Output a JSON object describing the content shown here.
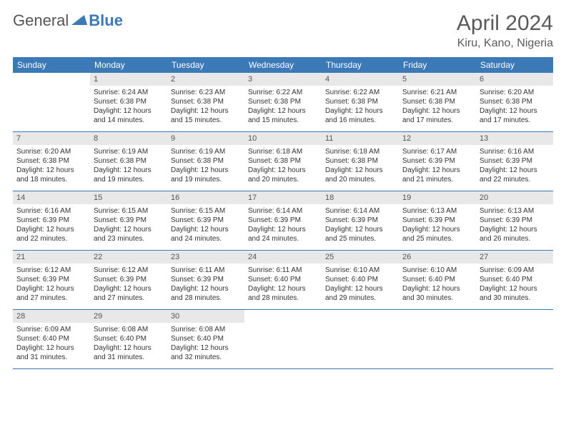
{
  "brand": {
    "general": "General",
    "blue": "Blue"
  },
  "title": "April 2024",
  "location": "Kiru, Kano, Nigeria",
  "colors": {
    "header_bg": "#3b79b7",
    "day_number_bg": "#e8e8e8",
    "text": "#333333",
    "title_text": "#5a5a5a"
  },
  "typography": {
    "title_fontsize": 30,
    "location_fontsize": 16,
    "weekday_fontsize": 12,
    "daynum_fontsize": 11,
    "body_fontsize": 10
  },
  "weekdays": [
    "Sunday",
    "Monday",
    "Tuesday",
    "Wednesday",
    "Thursday",
    "Friday",
    "Saturday"
  ],
  "weeks": [
    [
      {
        "n": "",
        "sr": "",
        "ss": "",
        "dl": ""
      },
      {
        "n": "1",
        "sr": "Sunrise: 6:24 AM",
        "ss": "Sunset: 6:38 PM",
        "dl": "Daylight: 12 hours and 14 minutes."
      },
      {
        "n": "2",
        "sr": "Sunrise: 6:23 AM",
        "ss": "Sunset: 6:38 PM",
        "dl": "Daylight: 12 hours and 15 minutes."
      },
      {
        "n": "3",
        "sr": "Sunrise: 6:22 AM",
        "ss": "Sunset: 6:38 PM",
        "dl": "Daylight: 12 hours and 15 minutes."
      },
      {
        "n": "4",
        "sr": "Sunrise: 6:22 AM",
        "ss": "Sunset: 6:38 PM",
        "dl": "Daylight: 12 hours and 16 minutes."
      },
      {
        "n": "5",
        "sr": "Sunrise: 6:21 AM",
        "ss": "Sunset: 6:38 PM",
        "dl": "Daylight: 12 hours and 17 minutes."
      },
      {
        "n": "6",
        "sr": "Sunrise: 6:20 AM",
        "ss": "Sunset: 6:38 PM",
        "dl": "Daylight: 12 hours and 17 minutes."
      }
    ],
    [
      {
        "n": "7",
        "sr": "Sunrise: 6:20 AM",
        "ss": "Sunset: 6:38 PM",
        "dl": "Daylight: 12 hours and 18 minutes."
      },
      {
        "n": "8",
        "sr": "Sunrise: 6:19 AM",
        "ss": "Sunset: 6:38 PM",
        "dl": "Daylight: 12 hours and 19 minutes."
      },
      {
        "n": "9",
        "sr": "Sunrise: 6:19 AM",
        "ss": "Sunset: 6:38 PM",
        "dl": "Daylight: 12 hours and 19 minutes."
      },
      {
        "n": "10",
        "sr": "Sunrise: 6:18 AM",
        "ss": "Sunset: 6:38 PM",
        "dl": "Daylight: 12 hours and 20 minutes."
      },
      {
        "n": "11",
        "sr": "Sunrise: 6:18 AM",
        "ss": "Sunset: 6:38 PM",
        "dl": "Daylight: 12 hours and 20 minutes."
      },
      {
        "n": "12",
        "sr": "Sunrise: 6:17 AM",
        "ss": "Sunset: 6:39 PM",
        "dl": "Daylight: 12 hours and 21 minutes."
      },
      {
        "n": "13",
        "sr": "Sunrise: 6:16 AM",
        "ss": "Sunset: 6:39 PM",
        "dl": "Daylight: 12 hours and 22 minutes."
      }
    ],
    [
      {
        "n": "14",
        "sr": "Sunrise: 6:16 AM",
        "ss": "Sunset: 6:39 PM",
        "dl": "Daylight: 12 hours and 22 minutes."
      },
      {
        "n": "15",
        "sr": "Sunrise: 6:15 AM",
        "ss": "Sunset: 6:39 PM",
        "dl": "Daylight: 12 hours and 23 minutes."
      },
      {
        "n": "16",
        "sr": "Sunrise: 6:15 AM",
        "ss": "Sunset: 6:39 PM",
        "dl": "Daylight: 12 hours and 24 minutes."
      },
      {
        "n": "17",
        "sr": "Sunrise: 6:14 AM",
        "ss": "Sunset: 6:39 PM",
        "dl": "Daylight: 12 hours and 24 minutes."
      },
      {
        "n": "18",
        "sr": "Sunrise: 6:14 AM",
        "ss": "Sunset: 6:39 PM",
        "dl": "Daylight: 12 hours and 25 minutes."
      },
      {
        "n": "19",
        "sr": "Sunrise: 6:13 AM",
        "ss": "Sunset: 6:39 PM",
        "dl": "Daylight: 12 hours and 25 minutes."
      },
      {
        "n": "20",
        "sr": "Sunrise: 6:13 AM",
        "ss": "Sunset: 6:39 PM",
        "dl": "Daylight: 12 hours and 26 minutes."
      }
    ],
    [
      {
        "n": "21",
        "sr": "Sunrise: 6:12 AM",
        "ss": "Sunset: 6:39 PM",
        "dl": "Daylight: 12 hours and 27 minutes."
      },
      {
        "n": "22",
        "sr": "Sunrise: 6:12 AM",
        "ss": "Sunset: 6:39 PM",
        "dl": "Daylight: 12 hours and 27 minutes."
      },
      {
        "n": "23",
        "sr": "Sunrise: 6:11 AM",
        "ss": "Sunset: 6:39 PM",
        "dl": "Daylight: 12 hours and 28 minutes."
      },
      {
        "n": "24",
        "sr": "Sunrise: 6:11 AM",
        "ss": "Sunset: 6:40 PM",
        "dl": "Daylight: 12 hours and 28 minutes."
      },
      {
        "n": "25",
        "sr": "Sunrise: 6:10 AM",
        "ss": "Sunset: 6:40 PM",
        "dl": "Daylight: 12 hours and 29 minutes."
      },
      {
        "n": "26",
        "sr": "Sunrise: 6:10 AM",
        "ss": "Sunset: 6:40 PM",
        "dl": "Daylight: 12 hours and 30 minutes."
      },
      {
        "n": "27",
        "sr": "Sunrise: 6:09 AM",
        "ss": "Sunset: 6:40 PM",
        "dl": "Daylight: 12 hours and 30 minutes."
      }
    ],
    [
      {
        "n": "28",
        "sr": "Sunrise: 6:09 AM",
        "ss": "Sunset: 6:40 PM",
        "dl": "Daylight: 12 hours and 31 minutes."
      },
      {
        "n": "29",
        "sr": "Sunrise: 6:08 AM",
        "ss": "Sunset: 6:40 PM",
        "dl": "Daylight: 12 hours and 31 minutes."
      },
      {
        "n": "30",
        "sr": "Sunrise: 6:08 AM",
        "ss": "Sunset: 6:40 PM",
        "dl": "Daylight: 12 hours and 32 minutes."
      },
      {
        "n": "",
        "sr": "",
        "ss": "",
        "dl": ""
      },
      {
        "n": "",
        "sr": "",
        "ss": "",
        "dl": ""
      },
      {
        "n": "",
        "sr": "",
        "ss": "",
        "dl": ""
      },
      {
        "n": "",
        "sr": "",
        "ss": "",
        "dl": ""
      }
    ]
  ]
}
